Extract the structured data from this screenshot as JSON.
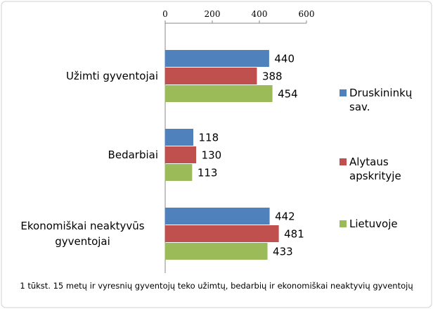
{
  "chart_data": {
    "type": "bar",
    "orientation": "horizontal",
    "categories": [
      "Užimti gyventojai",
      "Bedarbiai",
      "Ekonomiškai neaktyvūs gyventojai"
    ],
    "series": [
      {
        "name": "Druskininkų sav.",
        "color": "#4f81bd",
        "values": [
          440,
          118,
          442
        ]
      },
      {
        "name": "Alytaus apskrityje",
        "color": "#c0504d",
        "values": [
          388,
          130,
          481
        ]
      },
      {
        "name": "Lietuvoje",
        "color": "#9bbb59",
        "values": [
          454,
          113,
          433
        ]
      }
    ],
    "xlim": [
      0,
      600
    ],
    "xticks": [
      0,
      200,
      400,
      600
    ],
    "legend": "right",
    "caption": "1 tūkst. 15 metų ir vyresnių gyventojų teko užimtų, bedarbių ir ekonomiškai neaktyvių gyventojų"
  }
}
